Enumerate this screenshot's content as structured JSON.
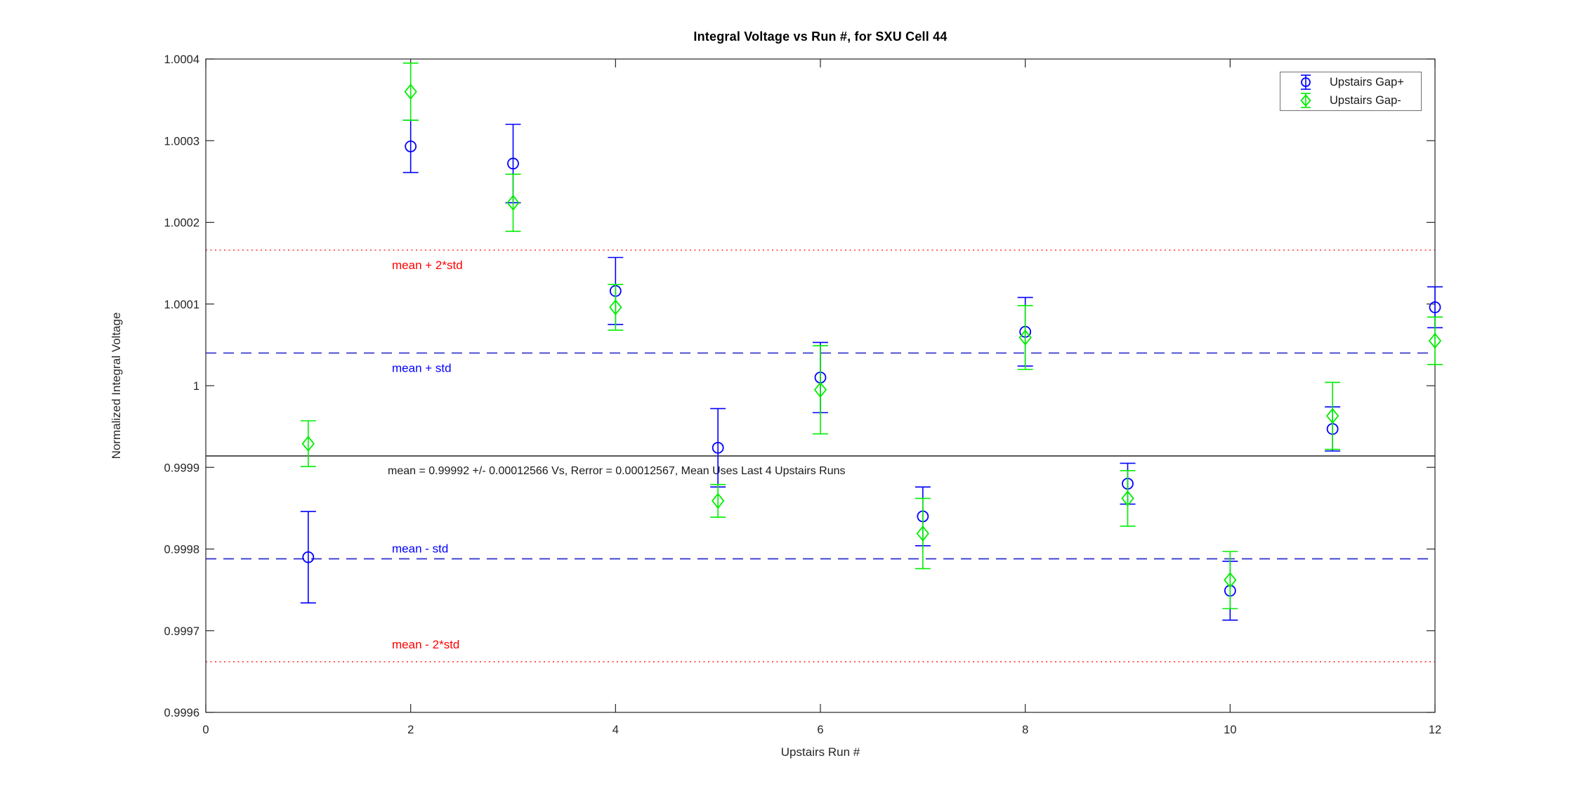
{
  "chart_data": {
    "type": "scatter",
    "title": "Integral Voltage vs Run #, for SXU Cell 44",
    "xlabel": "Upstairs Run #",
    "ylabel": "Normalized Integral Voltage",
    "xlim": [
      0,
      12
    ],
    "ylim": [
      0.9996,
      1.0004
    ],
    "grid": false,
    "legend_position": "top-right",
    "x_ticks": [
      {
        "value": 0,
        "label": "0"
      },
      {
        "value": 2,
        "label": "2"
      },
      {
        "value": 4,
        "label": "4"
      },
      {
        "value": 6,
        "label": "6"
      },
      {
        "value": 8,
        "label": "8"
      },
      {
        "value": 10,
        "label": "10"
      },
      {
        "value": 12,
        "label": "12"
      }
    ],
    "y_ticks": [
      {
        "value": 0.9996,
        "label": "0.9996"
      },
      {
        "value": 0.9997,
        "label": "0.9997"
      },
      {
        "value": 0.9998,
        "label": "0.9998"
      },
      {
        "value": 0.9999,
        "label": "0.9999"
      },
      {
        "value": 1.0,
        "label": "1"
      },
      {
        "value": 1.0001,
        "label": "1.0001"
      },
      {
        "value": 1.0002,
        "label": "1.0002"
      },
      {
        "value": 1.0003,
        "label": "1.0003"
      },
      {
        "value": 1.0004,
        "label": "1.0004"
      }
    ],
    "series": [
      {
        "name": "Upstairs Gap+",
        "marker": "circle",
        "color": "#0000ff",
        "x": [
          1,
          2,
          3,
          4,
          5,
          6,
          7,
          8,
          9,
          10,
          11,
          12
        ],
        "y": [
          0.99979,
          1.000293,
          1.000272,
          1.000116,
          0.999924,
          1.00001,
          0.99984,
          1.000066,
          0.99988,
          0.999749,
          0.999947,
          1.000096
        ],
        "yerr": [
          5.6e-05,
          3.2e-05,
          4.8e-05,
          4.1e-05,
          4.8e-05,
          4.3e-05,
          3.6e-05,
          4.2e-05,
          2.5e-05,
          3.6e-05,
          2.7e-05,
          2.5e-05
        ]
      },
      {
        "name": "Upstairs Gap-",
        "marker": "diamond",
        "color": "#00ee00",
        "x": [
          1,
          2,
          3,
          4,
          5,
          6,
          7,
          8,
          9,
          10,
          11,
          12
        ],
        "y": [
          0.999929,
          1.00036,
          1.000224,
          1.000096,
          0.999859,
          0.999995,
          0.999819,
          1.000059,
          0.999862,
          0.999762,
          0.999963,
          1.000055
        ],
        "yerr": [
          2.8e-05,
          3.5e-05,
          3.5e-05,
          2.8e-05,
          2e-05,
          5.4e-05,
          4.3e-05,
          3.9e-05,
          3.4e-05,
          3.5e-05,
          4.1e-05,
          2.9e-05
        ]
      }
    ],
    "reference_lines": [
      {
        "label": "mean + 2*std",
        "value": 1.000166,
        "style": "dotted",
        "line_color": "#ff5050",
        "label_color": "#ff0000",
        "label_dy": 27
      },
      {
        "label": "mean + std",
        "value": 1.00004,
        "style": "dashed",
        "line_color": "#3a3ad0",
        "label_color": "#0000ff",
        "label_dy": 27
      },
      {
        "label": "",
        "value": 0.999914,
        "style": "solid",
        "line_color": "#404040",
        "label_color": "#000000",
        "label_dy": 0
      },
      {
        "label": "mean - std",
        "value": 0.999788,
        "style": "dashed",
        "line_color": "#3a3ad0",
        "label_color": "#0000ff",
        "label_dy": -9
      },
      {
        "label": "mean - 2*std",
        "value": 0.999662,
        "style": "dotted",
        "line_color": "#ff5050",
        "label_color": "#ff0000",
        "label_dy": -19
      }
    ],
    "annotation": {
      "text": "mean = 0.99992 +/- 0.00012566 Vs, Rerror = 0.00012567, Mean Uses Last 4 Upstairs Runs",
      "color": "#1a1a1a"
    },
    "stats": {
      "mean": "0.99992",
      "std": "0.00012566",
      "rerror": "0.00012567"
    }
  }
}
